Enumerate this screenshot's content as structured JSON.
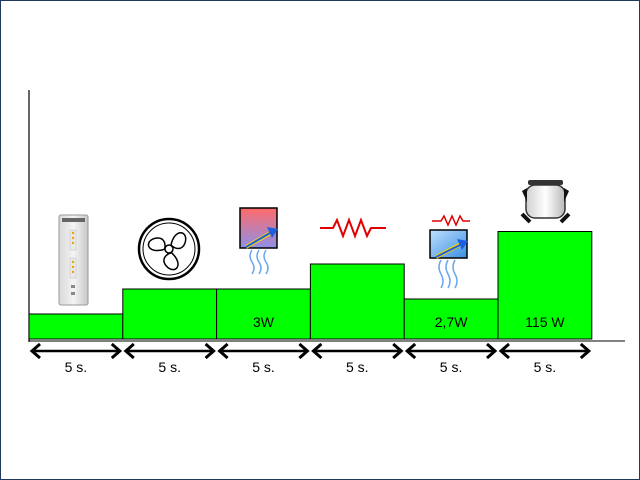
{
  "colors": {
    "bar_fill": "#00ff00",
    "bar_stroke": "#000000",
    "axis": "#000000",
    "arrow": "#000000",
    "frame": "#1f3b5c"
  },
  "stages": [
    {
      "duration": "5 s.",
      "level": 1,
      "power_label": "",
      "icon": "control-panel-icon"
    },
    {
      "duration": "5 s.",
      "level": 2,
      "power_label": "",
      "icon": "fan-icon"
    },
    {
      "duration": "5 s.",
      "level": 2,
      "power_label": "3W",
      "icon": "damper-heater-icon"
    },
    {
      "duration": "5 s.",
      "level": 3,
      "power_label": "",
      "icon": "resistor-heater-icon"
    },
    {
      "duration": "5 s.",
      "level": 1.6,
      "power_label": "2,7W",
      "icon": "damper-resistor-icon"
    },
    {
      "duration": "5 s.",
      "level": 4.3,
      "power_label": "115 W",
      "icon": "compressor-icon"
    }
  ]
}
